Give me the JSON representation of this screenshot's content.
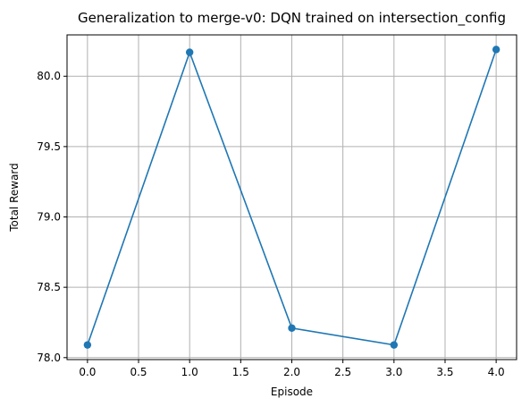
{
  "chart_data": {
    "type": "line",
    "title": "Generalization to merge-v0: DQN trained on intersection_config",
    "xlabel": "Episode",
    "ylabel": "Total Reward",
    "x": [
      0,
      1,
      2,
      3,
      4
    ],
    "series": [
      {
        "values": [
          78.09,
          80.17,
          78.21,
          78.09,
          80.19
        ],
        "color": "#1f77b4",
        "marker": "circle"
      }
    ],
    "xticks": [
      "0.0",
      "0.5",
      "1.0",
      "1.5",
      "2.0",
      "2.5",
      "3.0",
      "3.5",
      "4.0"
    ],
    "yticks": [
      "78.0",
      "78.5",
      "79.0",
      "79.5",
      "80.0"
    ],
    "xlim": [
      -0.2,
      4.2
    ],
    "ylim": [
      77.986,
      80.294
    ],
    "grid": true,
    "legend": "none"
  }
}
